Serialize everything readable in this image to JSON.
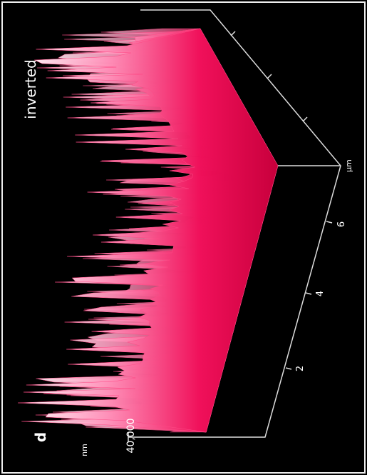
{
  "panel_label": "d",
  "annotation": "inverted",
  "z_axis": {
    "tick_label": "40,000",
    "unit": "nm"
  },
  "x_axis": {
    "tick_labels": [
      "2",
      "4",
      "6"
    ],
    "unit": "µm"
  }
}
